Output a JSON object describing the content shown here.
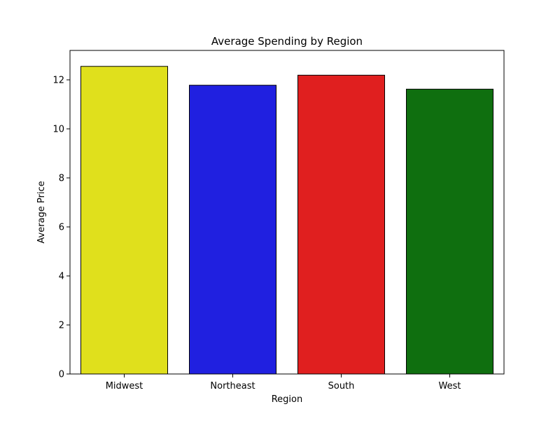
{
  "chart_data": {
    "type": "bar",
    "title": "Average Spending by Region",
    "xlabel": "Region",
    "ylabel": "Average Price",
    "categories": [
      "Midwest",
      "Northeast",
      "South",
      "West"
    ],
    "values": [
      12.55,
      11.78,
      12.19,
      11.62
    ],
    "colors": [
      "#e0e01c",
      "#2020e0",
      "#e01f1f",
      "#0f6f0f"
    ],
    "ylim": [
      0,
      13.2
    ],
    "yticks": [
      "0",
      "2",
      "4",
      "6",
      "8",
      "10",
      "12"
    ],
    "grid": false,
    "legend": false
  }
}
